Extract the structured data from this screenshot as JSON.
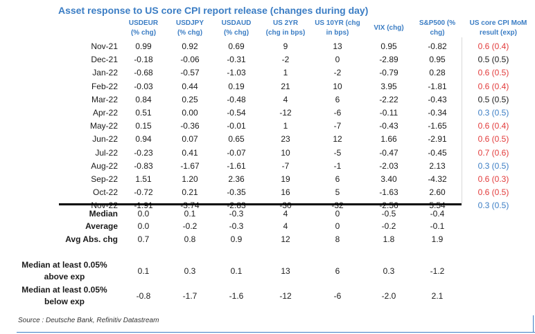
{
  "title": "Asset response to US core CPI report release (changes during day)",
  "headers": [
    {
      "line1": "USDEUR",
      "line2": "(% chg)"
    },
    {
      "line1": "USDJPY",
      "line2": "(% chg)"
    },
    {
      "line1": "USDAUD",
      "line2": "(% chg)"
    },
    {
      "line1": "US 2YR",
      "line2": "(chg in bps)"
    },
    {
      "line1": "US 10YR (chg",
      "line2": "in bps)"
    },
    {
      "line1": "VIX (chg)",
      "line2": ""
    },
    {
      "line1": "S&P500  (%",
      "line2": "chg)"
    },
    {
      "line1": "US core CPI MoM",
      "line2": "result (exp)"
    }
  ],
  "rows": [
    {
      "month": "Nov-21",
      "values": [
        "0.99",
        "0.92",
        "0.69",
        "9",
        "13",
        "0.95",
        "-0.82"
      ],
      "cpi": "0.6 (0.4)",
      "cpi_color": "red"
    },
    {
      "month": "Dec-21",
      "values": [
        "-0.18",
        "-0.06",
        "-0.31",
        "-2",
        "0",
        "-2.89",
        "0.95"
      ],
      "cpi": "0.5 (0.5)",
      "cpi_color": "black"
    },
    {
      "month": "Jan-22",
      "values": [
        "-0.68",
        "-0.57",
        "-1.03",
        "1",
        "-2",
        "-0.79",
        "0.28"
      ],
      "cpi": "0.6 (0.5)",
      "cpi_color": "red"
    },
    {
      "month": "Feb-22",
      "values": [
        "-0.03",
        "0.44",
        "0.19",
        "21",
        "10",
        "3.95",
        "-1.81"
      ],
      "cpi": "0.6 (0.4)",
      "cpi_color": "red"
    },
    {
      "month": "Mar-22",
      "values": [
        "0.84",
        "0.25",
        "-0.48",
        "4",
        "6",
        "-2.22",
        "-0.43"
      ],
      "cpi": "0.5 (0.5)",
      "cpi_color": "black"
    },
    {
      "month": "Apr-22",
      "values": [
        "0.51",
        "0.00",
        "-0.54",
        "-12",
        "-6",
        "-0.11",
        "-0.34"
      ],
      "cpi": "0.3 (0.5)",
      "cpi_color": "blue"
    },
    {
      "month": "May-22",
      "values": [
        "0.15",
        "-0.36",
        "-0.01",
        "1",
        "-7",
        "-0.43",
        "-1.65"
      ],
      "cpi": "0.6 (0.4)",
      "cpi_color": "red"
    },
    {
      "month": "Jun-22",
      "values": [
        "0.94",
        "0.07",
        "0.65",
        "23",
        "12",
        "1.66",
        "-2.91"
      ],
      "cpi": "0.6 (0.5)",
      "cpi_color": "red"
    },
    {
      "month": "Jul-22",
      "values": [
        "-0.23",
        "0.41",
        "-0.07",
        "10",
        "-5",
        "-0.47",
        "-0.45"
      ],
      "cpi": "0.7 (0.6)",
      "cpi_color": "red"
    },
    {
      "month": "Aug-22",
      "values": [
        "-0.83",
        "-1.67",
        "-1.61",
        "-7",
        "-1",
        "-2.03",
        "2.13"
      ],
      "cpi": "0.3 (0.5)",
      "cpi_color": "blue"
    },
    {
      "month": "Sep-22",
      "values": [
        "1.51",
        "1.20",
        "2.36",
        "19",
        "6",
        "3.40",
        "-4.32"
      ],
      "cpi": "0.6 (0.3)",
      "cpi_color": "red"
    },
    {
      "month": "Oct-22",
      "values": [
        "-0.72",
        "0.21",
        "-0.35",
        "16",
        "5",
        "-1.63",
        "2.60"
      ],
      "cpi": "0.6 (0.5)",
      "cpi_color": "red"
    },
    {
      "month": "Nov-22",
      "values": [
        "-1.91",
        "-3.74",
        "-2.83",
        "-30",
        "-32",
        "-2.56",
        "5.54"
      ],
      "cpi": "0.3 (0.5)",
      "cpi_color": "blue"
    }
  ],
  "summary": [
    {
      "label": "Median",
      "values": [
        "0.0",
        "0.1",
        "-0.3",
        "4",
        "0",
        "-0.5",
        "-0.4"
      ]
    },
    {
      "label": "Average",
      "values": [
        "0.0",
        "-0.2",
        "-0.3",
        "4",
        "0",
        "-0.2",
        "-0.1"
      ]
    },
    {
      "label": "Avg Abs. chg",
      "values": [
        "0.7",
        "0.8",
        "0.9",
        "12",
        "8",
        "1.8",
        "1.9"
      ]
    }
  ],
  "conditional": [
    {
      "label_line1": "Median at least 0.05%",
      "label_line2": "above exp",
      "values": [
        "0.1",
        "0.3",
        "0.1",
        "13",
        "6",
        "0.3",
        "-1.2"
      ]
    },
    {
      "label_line1": "Median at least 0.05%",
      "label_line2": "below exp",
      "values": [
        "-0.8",
        "-1.7",
        "-1.6",
        "-12",
        "-6",
        "-2.0",
        "2.1"
      ]
    }
  ],
  "source": "Source : Deutsche Bank, Refinitiv Datastream",
  "colors": {
    "red": "#e23a3a",
    "blue": "#3b7dc4",
    "black": "#1a1a1a"
  }
}
